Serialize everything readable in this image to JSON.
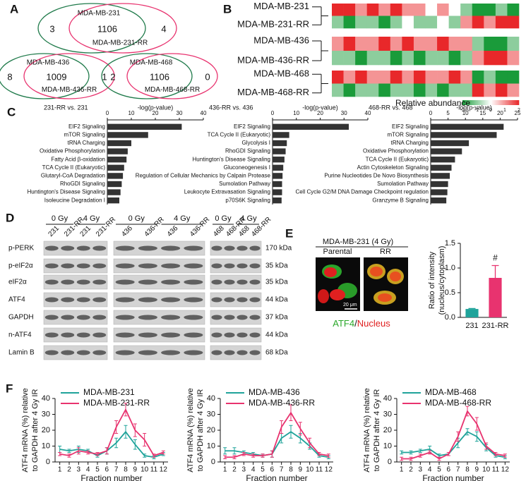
{
  "panel_labels": [
    "A",
    "B",
    "C",
    "D",
    "E",
    "F"
  ],
  "venn": [
    {
      "left": "MDA-MB-231",
      "right": "MDA-MB-231-RR",
      "left_only": 3,
      "both": 1106,
      "right_only": 4
    },
    {
      "left": "MDA-MB-436",
      "right": "MDA-MB-436-RR",
      "left_only": 8,
      "both": 1009,
      "right_only": 1
    },
    {
      "left": "MDA-MB-468",
      "right": "MDA-MB-468-RR",
      "left_only": 2,
      "both": 1106,
      "right_only": 0
    }
  ],
  "heatmap": {
    "blocks": [
      {
        "rows": [
          "MDA-MB-231",
          "MDA-MB-231-RR"
        ],
        "values": [
          [
            2,
            2,
            1,
            2,
            1,
            2,
            1,
            1,
            0,
            1,
            0,
            -1,
            -2,
            -2,
            -1,
            -2
          ],
          [
            -1,
            -2,
            -1,
            -1,
            -2,
            -1,
            0,
            -1,
            -1,
            0,
            -1,
            1,
            2,
            1,
            2,
            2
          ]
        ]
      },
      {
        "rows": [
          "MDA-MB-436",
          "MDA-MB-436-RR"
        ],
        "values": [
          [
            1,
            2,
            1,
            1,
            2,
            1,
            2,
            1,
            1,
            2,
            1,
            1,
            -1,
            -2,
            -2,
            -1
          ],
          [
            -1,
            -1,
            -2,
            -1,
            -1,
            -2,
            -1,
            -2,
            -1,
            -1,
            -2,
            -1,
            1,
            2,
            2,
            1
          ]
        ]
      },
      {
        "rows": [
          "MDA-MB-468",
          "MDA-MB-468-RR"
        ],
        "values": [
          [
            2,
            1,
            2,
            1,
            1,
            2,
            1,
            2,
            1,
            1,
            2,
            1,
            -2,
            -1,
            -2,
            -2
          ],
          [
            -1,
            -2,
            -1,
            -1,
            -2,
            -1,
            -1,
            -2,
            -1,
            -2,
            -1,
            -1,
            2,
            1,
            2,
            1
          ]
        ]
      }
    ],
    "legend_title": "Relative abundance",
    "legend_ticks": [
      -2,
      -1,
      0,
      1,
      2
    ],
    "low_color": "#1a9b3a",
    "high_color": "#e8282a"
  },
  "blot": {
    "groups": [
      "0 Gy",
      "4 Gy"
    ],
    "panels": [
      {
        "lanes": [
          "231",
          "231-RR",
          "231",
          "231-RR"
        ]
      },
      {
        "lanes": [
          "436",
          "436-RR",
          "436",
          "436-RR"
        ]
      },
      {
        "lanes": [
          "468",
          "468-RR",
          "468",
          "468-RR"
        ]
      }
    ],
    "rows": [
      {
        "label": "p-PERK",
        "size": "170 kDa"
      },
      {
        "label": "p-eIF2α",
        "size": "35 kDa"
      },
      {
        "label": "eIF2α",
        "size": "35 kDa"
      },
      {
        "label": "ATF4",
        "size": "44 kDa"
      },
      {
        "label": "GAPDH",
        "size": "37 kDa"
      },
      {
        "label": "n-ATF4",
        "size": "44 kDa"
      },
      {
        "label": "Lamin B",
        "size": "68 kDa"
      }
    ]
  },
  "images": {
    "title": "MDA-MB-231 (4 Gy)",
    "columns": [
      "Parental",
      "RR"
    ],
    "scale_bar": "20 μm",
    "stain_1": "ATF4",
    "separator": "/",
    "stain_2": "Nucleus"
  },
  "chart_data": [
    {
      "type": "barh",
      "title": "231-RR vs. 231",
      "xlabel": "-log(p-value)",
      "color": "#333333",
      "xlim": [
        0,
        40
      ],
      "xticks": [
        0,
        10,
        20,
        30,
        40
      ],
      "categories": [
        "EIF2 Signaling",
        "mTOR Signaling",
        "tRNA Charging",
        "Oxidative Phosphorylation",
        "Fatty Acid β-oxidation",
        "TCA Cycle II (Eukaryotic)",
        "Glutaryl-CoA Degradation",
        "RhoGDI Signaling",
        "Huntington's Disease Signaling",
        "Isoleucine Degradation I"
      ],
      "values": [
        31,
        17,
        10,
        8.5,
        8,
        7,
        6.5,
        6,
        5.5,
        5
      ]
    },
    {
      "type": "barh",
      "title": "436-RR vs. 436",
      "xlabel": "-log(p-value)",
      "color": "#333333",
      "xlim": [
        0,
        40
      ],
      "xticks": [
        0,
        10,
        20,
        30,
        40
      ],
      "categories": [
        "EIF2 Signaling",
        "TCA Cycle II (Eukaryotic)",
        "Glycolysis I",
        "RhoGDI Signaling",
        "Huntington's Disease Signaling",
        "Gluconeogenesis I",
        "Regulation of Cellular Mechanics by Calpain Protease",
        "Sumolation Pathway",
        "Leukocyte Extravasation Signaling",
        "p70S6K Signaling"
      ],
      "values": [
        32,
        7,
        6,
        5.5,
        5,
        4.5,
        4.2,
        4,
        4,
        3.8
      ]
    },
    {
      "type": "barh",
      "title": "468-RR vs. 468",
      "xlabel": "-log(p-value)",
      "color": "#333333",
      "xlim": [
        0,
        25
      ],
      "xticks": [
        0,
        5,
        10,
        15,
        20,
        25
      ],
      "categories": [
        "EIF2 Signaling",
        "mTOR Signaling",
        "tRNA Charging",
        "Oxidative Phosphorylation",
        "TCA Cycle II (Eukaryotic)",
        "Actin Cytoskeleton Signaling",
        "Purine Nucleotides De Novo Biosynthesis",
        "Sumolation Pathway",
        "Cell Cycle G2/M DNA Damage Checkpoint regulation",
        "Granzyme B Signaling"
      ],
      "values": [
        21,
        19,
        11,
        9,
        7,
        6,
        5.5,
        5,
        4.8,
        4.5
      ]
    },
    {
      "type": "bar",
      "ylabel": [
        "Ratio of intensity",
        "(nucleus/cytoplasm)"
      ],
      "categories": [
        "231",
        "231-RR"
      ],
      "values": [
        0.17,
        0.8
      ],
      "errors": [
        0.01,
        0.25
      ],
      "colors": [
        "#1fa39a",
        "#e8336f"
      ],
      "annotation": "#",
      "ylim": [
        0,
        1.5
      ],
      "yticks": [
        {
          "value": 0,
          "label": "0.0"
        },
        {
          "value": 0.5,
          "label": "0.5"
        },
        {
          "value": 1,
          "label": "1.0"
        },
        {
          "value": 1.5,
          "label": "1.5"
        }
      ]
    },
    {
      "type": "line",
      "ylabel": [
        "ATF4 mRNA (%) relative",
        "to GAPDH after 4 Gy IR"
      ],
      "xlabel": "Fraction number",
      "x": [
        1,
        2,
        3,
        4,
        5,
        6,
        7,
        8,
        9,
        10,
        11,
        12
      ],
      "xlim": [
        0.5,
        12.5
      ],
      "xticks": [
        1,
        2,
        3,
        4,
        5,
        6,
        7,
        8,
        9,
        10,
        11,
        12
      ],
      "ylim": [
        0,
        40
      ],
      "yticks": [
        0,
        10,
        20,
        30,
        40
      ],
      "series": [
        {
          "name": "MDA-MB-231",
          "color": "#1fa39a",
          "values": [
            8,
            7,
            8,
            7,
            4,
            7,
            12,
            19,
            11,
            4,
            3,
            5
          ],
          "errors": [
            2,
            1,
            2,
            1,
            1,
            2,
            3,
            4,
            3,
            1,
            1,
            1
          ]
        },
        {
          "name": "MDA-MB-231-RR",
          "color": "#e8336f",
          "values": [
            5,
            4,
            7,
            6,
            5,
            7,
            22,
            33,
            20,
            14,
            4,
            6
          ],
          "errors": [
            1,
            1,
            2,
            1,
            1,
            2,
            4,
            4,
            4,
            4,
            1,
            1
          ]
        }
      ]
    },
    {
      "type": "line",
      "ylabel": [
        "ATF4 mRNA (%) relative",
        "to GAPDH after 4 Gy IR"
      ],
      "xlabel": "Fraction number",
      "x": [
        1,
        2,
        3,
        4,
        5,
        6,
        7,
        8,
        9,
        10,
        11,
        12
      ],
      "xlim": [
        0.5,
        12.5
      ],
      "xticks": [
        1,
        2,
        3,
        4,
        5,
        6,
        7,
        8,
        9,
        10,
        11,
        12
      ],
      "ylim": [
        0,
        40
      ],
      "yticks": [
        0,
        10,
        20,
        30,
        40
      ],
      "series": [
        {
          "name": "MDA-MB-436",
          "color": "#1fa39a",
          "values": [
            7,
            7,
            6,
            5,
            4,
            5,
            15,
            19,
            15,
            10,
            4,
            3
          ],
          "errors": [
            2,
            2,
            1,
            1,
            1,
            2,
            3,
            4,
            3,
            2,
            1,
            1
          ]
        },
        {
          "name": "MDA-MB-436-RR",
          "color": "#e8336f",
          "values": [
            3,
            3,
            5,
            4,
            4,
            5,
            22,
            31,
            21,
            12,
            5,
            4
          ],
          "errors": [
            1,
            1,
            1,
            1,
            1,
            2,
            4,
            5,
            4,
            3,
            1,
            1
          ]
        }
      ]
    },
    {
      "type": "line",
      "ylabel": [
        "ATF4 mRNA (%) relative",
        "to GAPDH after 4 Gy IR"
      ],
      "xlabel": "Fraction number",
      "x": [
        1,
        2,
        3,
        4,
        5,
        6,
        7,
        8,
        9,
        10,
        11,
        12
      ],
      "xlim": [
        0.5,
        12.5
      ],
      "xticks": [
        1,
        2,
        3,
        4,
        5,
        6,
        7,
        8,
        9,
        10,
        11,
        12
      ],
      "ylim": [
        0,
        40
      ],
      "yticks": [
        0,
        10,
        20,
        30,
        40
      ],
      "series": [
        {
          "name": "MDA-MB-468",
          "color": "#1fa39a",
          "values": [
            6,
            6,
            7,
            8,
            4,
            5,
            12,
            19,
            16,
            9,
            4,
            3
          ],
          "errors": [
            1,
            1,
            1,
            2,
            1,
            1,
            3,
            2,
            3,
            2,
            1,
            1
          ]
        },
        {
          "name": "MDA-MB-468-RR",
          "color": "#e8336f",
          "values": [
            2,
            2,
            4,
            6,
            2,
            5,
            16,
            32,
            24,
            10,
            5,
            4
          ],
          "errors": [
            1,
            1,
            1,
            1,
            1,
            1,
            3,
            3,
            4,
            2,
            1,
            1
          ]
        }
      ]
    }
  ]
}
